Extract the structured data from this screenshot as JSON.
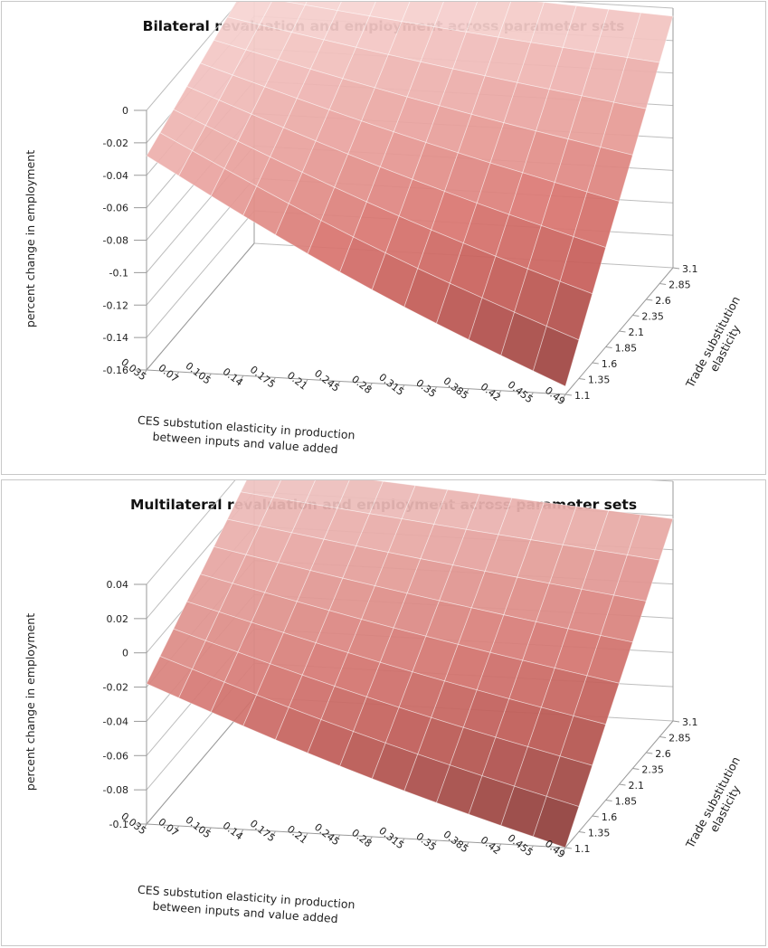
{
  "chart_data": [
    {
      "type": "surface",
      "title": "Bilateral revaluation and employment across parameter sets",
      "zlabel": "percent change in employment",
      "xlabel_lines": [
        "CES substution elasticity in production",
        "between inputs and value added"
      ],
      "ylabel_lines": [
        "Trade substitution",
        "elasticity"
      ],
      "x_ticks": [
        "0.035",
        "0.07",
        "0.105",
        "0.14",
        "0.175",
        "0.21",
        "0.245",
        "0.28",
        "0.315",
        "0.35",
        "0.385",
        "0.42",
        "0.455",
        "0.49"
      ],
      "y_ticks": [
        "1.1",
        "1.35",
        "1.6",
        "1.85",
        "2.1",
        "2.35",
        "2.6",
        "2.85",
        "3.1"
      ],
      "z_ticks": [
        "0",
        "-0.02",
        "-0.04",
        "-0.06",
        "-0.08",
        "-0.1",
        "-0.12",
        "-0.14",
        "-0.16"
      ],
      "zlim": [
        -0.16,
        0
      ],
      "surface_corners": {
        "x_0.035_y_1.1": -0.028,
        "x_0.035_y_3.1": 0.008,
        "x_0.49_y_1.1": -0.155,
        "x_0.49_y_3.1": -0.005
      },
      "color_bands": [
        "#f6d4d2",
        "#eeb4b1",
        "#e59893",
        "#d97671",
        "#c65e59",
        "#a94b47",
        "#8b3c39"
      ]
    },
    {
      "type": "surface",
      "title": "Multilateral revaluation and employment across parameter sets",
      "zlabel": "percent change in employment",
      "xlabel_lines": [
        "CES substution elasticity in production",
        "between inputs and value added"
      ],
      "ylabel_lines": [
        "Trade substitution",
        "elasticity"
      ],
      "x_ticks": [
        "0.035",
        "0.07",
        "0.105",
        "0.14",
        "0.175",
        "0.21",
        "0.245",
        "0.28",
        "0.315",
        "0.35",
        "0.385",
        "0.42",
        "0.455",
        "0.49"
      ],
      "y_ticks": [
        "1.1",
        "1.35",
        "1.6",
        "1.85",
        "2.1",
        "2.35",
        "2.6",
        "2.85",
        "3.1"
      ],
      "z_ticks": [
        "0.04",
        "0.02",
        "0",
        "-0.02",
        "-0.04",
        "-0.06",
        "-0.08",
        "-0.1"
      ],
      "zlim": [
        -0.1,
        0.04
      ],
      "surface_corners": {
        "x_0.035_y_1.1": -0.018,
        "x_0.035_y_3.1": 0.036,
        "x_0.49_y_1.1": -0.1,
        "x_0.49_y_3.1": 0.018
      },
      "color_bands": [
        "#f1cfcd",
        "#e9aeab",
        "#df918c",
        "#d3746f",
        "#be5b56",
        "#a24945",
        "#843936"
      ]
    }
  ]
}
